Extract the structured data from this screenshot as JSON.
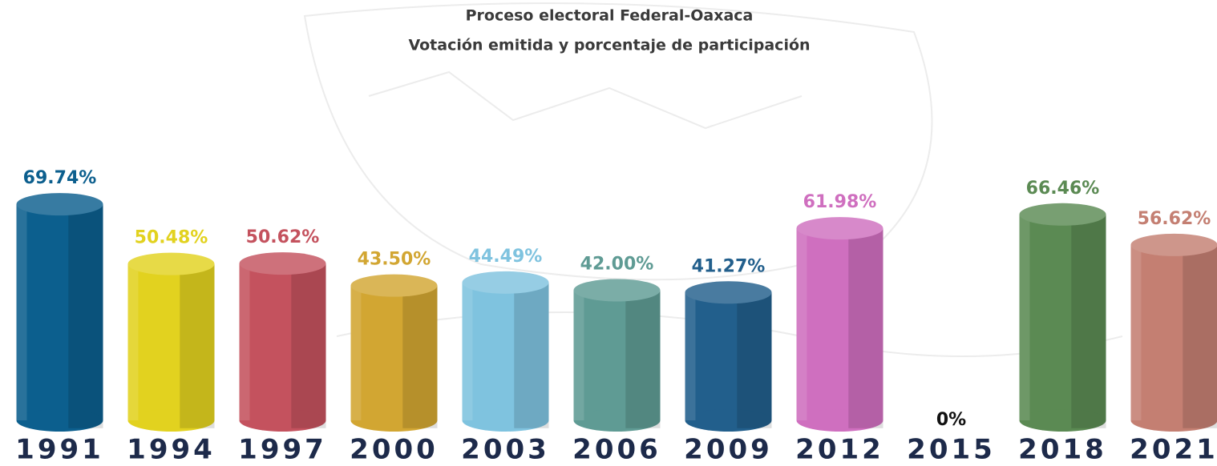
{
  "chart_data": {
    "type": "bar3d",
    "title": "Proceso electoral Federal-Oaxaca",
    "subtitle": "Votación emitida y porcentaje de participación",
    "categories": [
      "1991",
      "1994",
      "1997",
      "2000",
      "2003",
      "2006",
      "2009",
      "2012",
      "2015",
      "2018",
      "2021"
    ],
    "values": [
      69.74,
      50.48,
      50.62,
      43.5,
      44.49,
      42.0,
      41.27,
      61.98,
      0,
      66.46,
      56.62
    ],
    "value_labels": [
      "69.74%",
      "50.48%",
      "50.62%",
      "43.50%",
      "44.49%",
      "42.00%",
      "41.27%",
      "61.98%",
      "0%",
      "66.46%",
      "56.62%"
    ],
    "colors": [
      "#0c5f8e",
      "#e2d21f",
      "#c4525e",
      "#d2a632",
      "#7fc3df",
      "#5f9b94",
      "#225f8c",
      "#cf6fbf",
      "#111111",
      "#5b8a53",
      "#c47f72"
    ]
  }
}
